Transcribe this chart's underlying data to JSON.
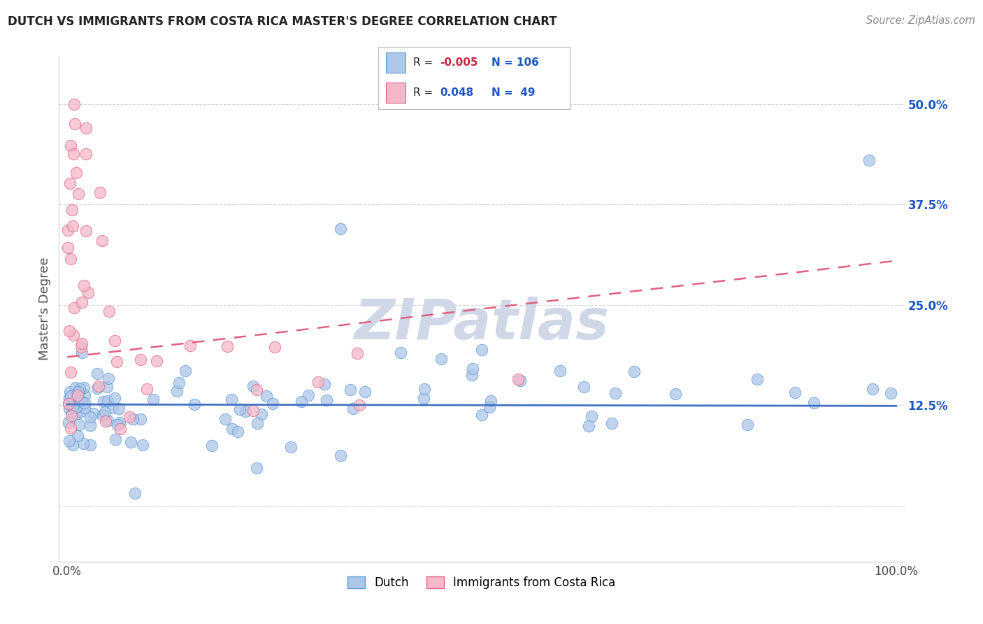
{
  "title": "DUTCH VS IMMIGRANTS FROM COSTA RICA MASTER'S DEGREE CORRELATION CHART",
  "source": "Source: ZipAtlas.com",
  "ylabel": "Master's Degree",
  "ytick_vals": [
    0.0,
    0.125,
    0.25,
    0.375,
    0.5
  ],
  "ytick_labels": [
    "",
    "12.5%",
    "25.0%",
    "37.5%",
    "50.0%"
  ],
  "xlim": [
    -0.01,
    1.01
  ],
  "ylim": [
    -0.07,
    0.56
  ],
  "dutch_color": "#aec6e8",
  "dutch_edge": "#5b9bd5",
  "cr_color": "#f4b8c8",
  "cr_edge": "#e06080",
  "dutch_trendline_color": "#4472c4",
  "cr_trendline_color": "#e06080",
  "watermark_color": "#d0d8e8",
  "grid_color": "#cccccc",
  "background_color": "#ffffff",
  "title_fontsize": 12,
  "tick_fontsize": 12,
  "legend_text_color": "#1a56c4",
  "legend_r_color": "#cc3355",
  "axis_label_color": "#555555"
}
